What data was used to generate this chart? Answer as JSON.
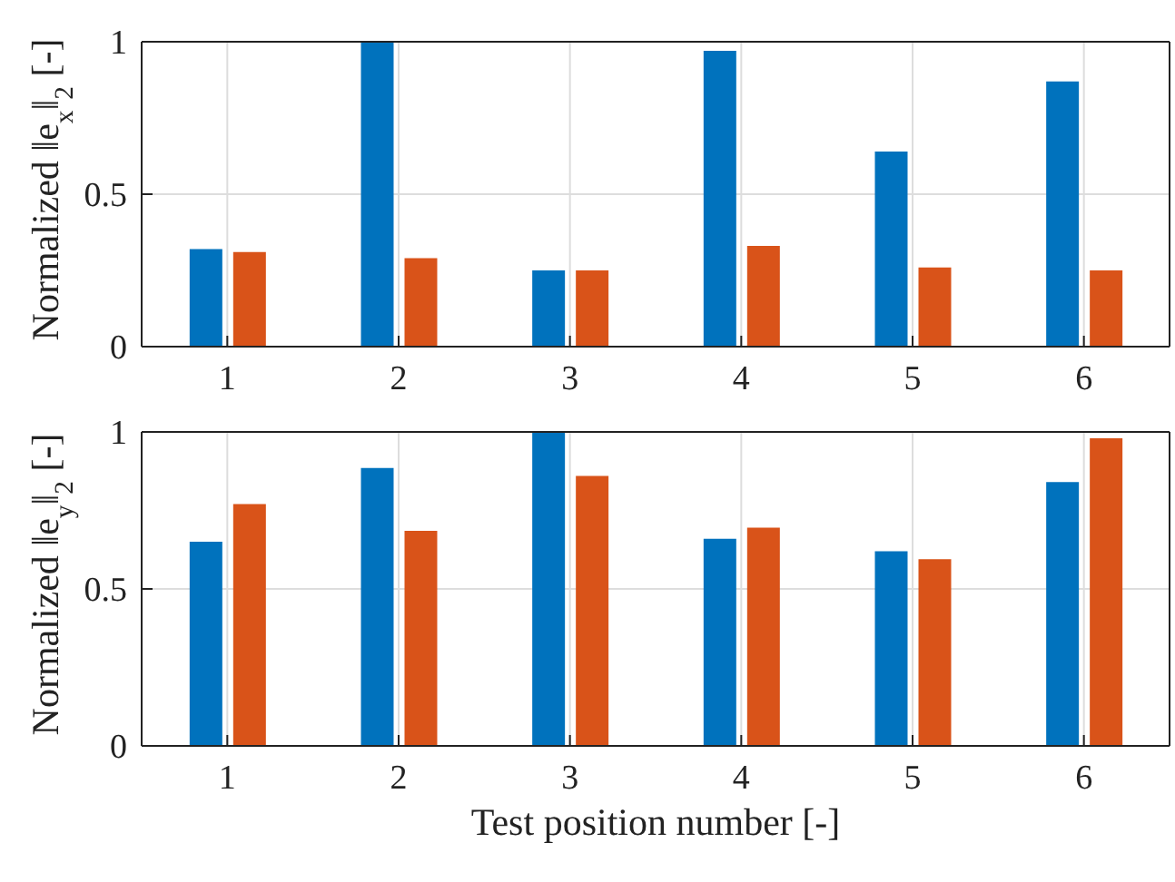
{
  "chart_data": [
    {
      "type": "bar",
      "ylabel": "Normalized ‖e$_{x}$‖$_{2}$ [-]",
      "categories": [
        "1",
        "2",
        "3",
        "4",
        "5",
        "6"
      ],
      "series": [
        {
          "color": "#0072bd",
          "values": [
            0.32,
            1.0,
            0.25,
            0.97,
            0.64,
            0.87
          ]
        },
        {
          "color": "#d95319",
          "values": [
            0.31,
            0.29,
            0.25,
            0.33,
            0.26,
            0.25
          ]
        }
      ],
      "ylim": [
        0,
        1
      ],
      "yticks": [
        0,
        0.5,
        1
      ],
      "grid": true,
      "legend": false
    },
    {
      "type": "bar",
      "xlabel": "Test position number [-]",
      "ylabel": "Normalized ‖e$_{y}$‖$_{2}$ [-]",
      "categories": [
        "1",
        "2",
        "3",
        "4",
        "5",
        "6"
      ],
      "series": [
        {
          "color": "#0072bd",
          "values": [
            0.65,
            0.885,
            1.0,
            0.66,
            0.62,
            0.84
          ]
        },
        {
          "color": "#d95319",
          "values": [
            0.77,
            0.685,
            0.86,
            0.695,
            0.595,
            0.98
          ]
        }
      ],
      "ylim": [
        0,
        1
      ],
      "yticks": [
        0,
        0.5,
        1
      ],
      "grid": true,
      "legend": false
    }
  ]
}
